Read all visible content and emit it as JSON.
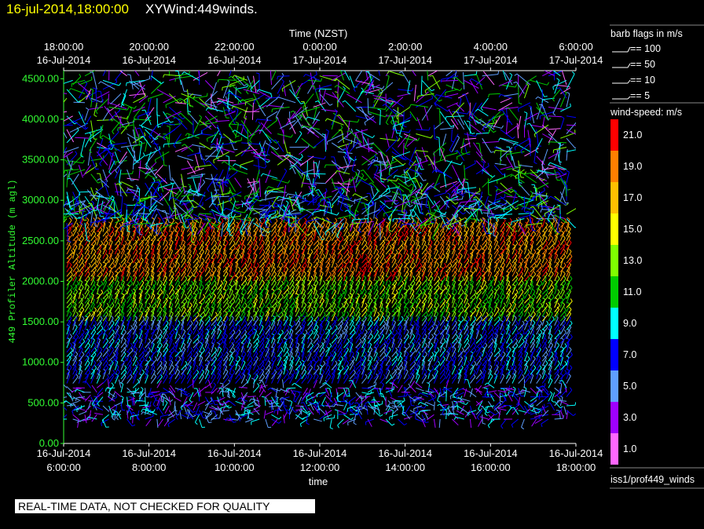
{
  "header": {
    "date": "16-jul-2014,18:00:00",
    "name": "XYWind:449winds."
  },
  "notice": "REAL-TIME DATA, NOT CHECKED FOR QUALITY",
  "chart_data": {
    "type": "scatter",
    "plot_style": "wind-barbs",
    "top_axis": {
      "label": "Time (NZST)",
      "ticks": [
        {
          "time": "18:00:00",
          "date": "16-Jul-2014"
        },
        {
          "time": "20:00:00",
          "date": "16-Jul-2014"
        },
        {
          "time": "22:00:00",
          "date": "16-Jul-2014"
        },
        {
          "time": "0:00:00",
          "date": "17-Jul-2014"
        },
        {
          "time": "2:00:00",
          "date": "17-Jul-2014"
        },
        {
          "time": "4:00:00",
          "date": "17-Jul-2014"
        },
        {
          "time": "6:00:00",
          "date": "17-Jul-2014"
        }
      ]
    },
    "bottom_axis": {
      "label": "time",
      "ticks": [
        {
          "date": "16-Jul-2014",
          "time": "6:00:00"
        },
        {
          "date": "16-Jul-2014",
          "time": "8:00:00"
        },
        {
          "date": "16-Jul-2014",
          "time": "10:00:00"
        },
        {
          "date": "16-Jul-2014",
          "time": "12:00:00"
        },
        {
          "date": "16-Jul-2014",
          "time": "14:00:00"
        },
        {
          "date": "16-Jul-2014",
          "time": "16:00:00"
        },
        {
          "date": "16-Jul-2014",
          "time": "18:00:00"
        }
      ],
      "xlim": [
        "16-Jul-2014 6:00:00",
        "16-Jul-2014 18:00:00"
      ]
    },
    "y_axis": {
      "label": "449 Profiler Altitude (m agl)",
      "ticks": [
        "0.00",
        "500.00",
        "1000.00",
        "1500.00",
        "2000.00",
        "2500.00",
        "3000.00",
        "3500.00",
        "4000.00",
        "4500.00"
      ],
      "ylim": [
        0,
        4600
      ]
    },
    "barb_legend": {
      "title": "barb flags in m/s",
      "items": [
        "== 100",
        "== 50",
        "== 10",
        "== 5"
      ]
    },
    "colorbar": {
      "title": "wind-speed: m/s",
      "labels": [
        "21.0",
        "19.0",
        "17.0",
        "15.0",
        "13.0",
        "11.0",
        "9.0",
        "7.0",
        "5.0",
        "3.0",
        "1.0"
      ],
      "colors": [
        "#ff0000",
        "#ff7f00",
        "#ffbf00",
        "#ffff00",
        "#7fff00",
        "#00cc00",
        "#00ffff",
        "#0000ff",
        "#5f9fff",
        "#9f00ff",
        "#ff66ff"
      ]
    },
    "data_source": "iss1/prof449_winds",
    "series": [
      {
        "height_range": [
          2000,
          2700
        ],
        "typical_speed_ms": [
          17,
          21
        ],
        "color": "#ff0000"
      },
      {
        "height_range": [
          1600,
          2100
        ],
        "typical_speed_ms": [
          11,
          15
        ],
        "color": "#7fff00"
      },
      {
        "height_range": [
          700,
          1500
        ],
        "typical_speed_ms": [
          5,
          9
        ],
        "color": "#0000ff"
      },
      {
        "height_range": [
          300,
          700
        ],
        "typical_speed_ms": [
          1,
          9
        ],
        "color": "#00ffff"
      },
      {
        "height_range": [
          2700,
          4600
        ],
        "typical_speed_ms": [
          1,
          13
        ],
        "color": "#9f00ff"
      }
    ]
  }
}
